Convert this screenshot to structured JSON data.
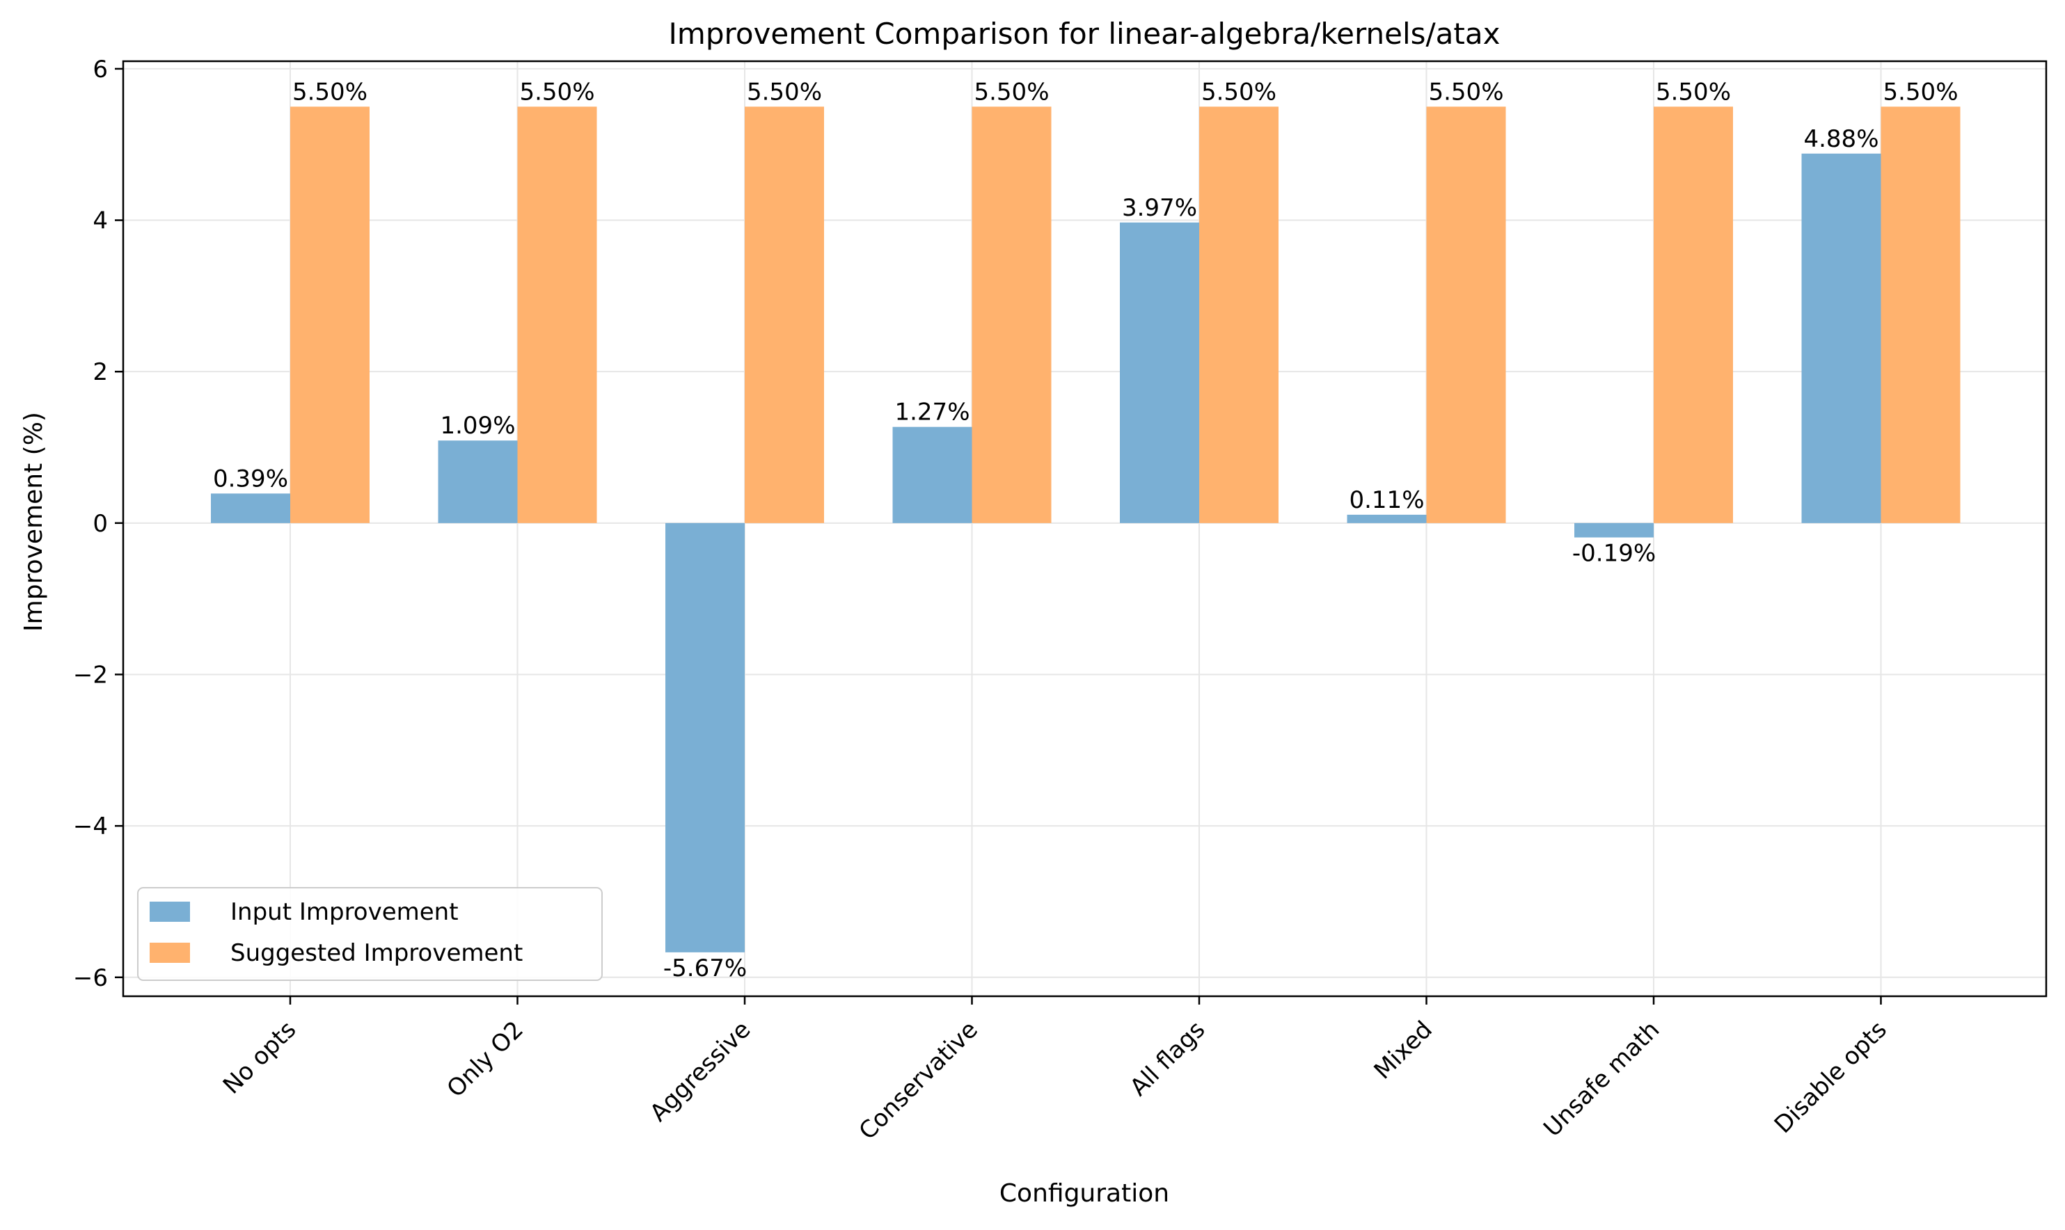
{
  "chart_data": {
    "type": "bar",
    "title": "Improvement Comparison for linear-algebra/kernels/atax",
    "xlabel": "Configuration",
    "ylabel": "Improvement (%)",
    "categories": [
      "No opts",
      "Only O2",
      "Aggressive",
      "Conservative",
      "All flags",
      "Mixed",
      "Unsafe math",
      "Disable opts"
    ],
    "series": [
      {
        "name": "Input Improvement",
        "color": "#7aafd4",
        "values": [
          0.39,
          1.09,
          -5.67,
          1.27,
          3.97,
          0.11,
          -0.19,
          4.88
        ],
        "labels": [
          "0.39%",
          "1.09%",
          "-5.67%",
          "1.27%",
          "3.97%",
          "0.11%",
          "-0.19%",
          "4.88%"
        ]
      },
      {
        "name": "Suggested Improvement",
        "color": "#ffb26e",
        "values": [
          5.5,
          5.5,
          5.5,
          5.5,
          5.5,
          5.5,
          5.5,
          5.5
        ],
        "labels": [
          "5.50%",
          "5.50%",
          "5.50%",
          "5.50%",
          "5.50%",
          "5.50%",
          "5.50%",
          "5.50%"
        ]
      }
    ],
    "yticks": [
      -6,
      -4,
      -2,
      0,
      2,
      4,
      6
    ],
    "ytick_labels": [
      "−6",
      "−4",
      "−2",
      "0",
      "2",
      "4",
      "6"
    ],
    "ylim": [
      -6.25,
      6.1
    ],
    "grid": true,
    "legend_position": "lower-left"
  }
}
